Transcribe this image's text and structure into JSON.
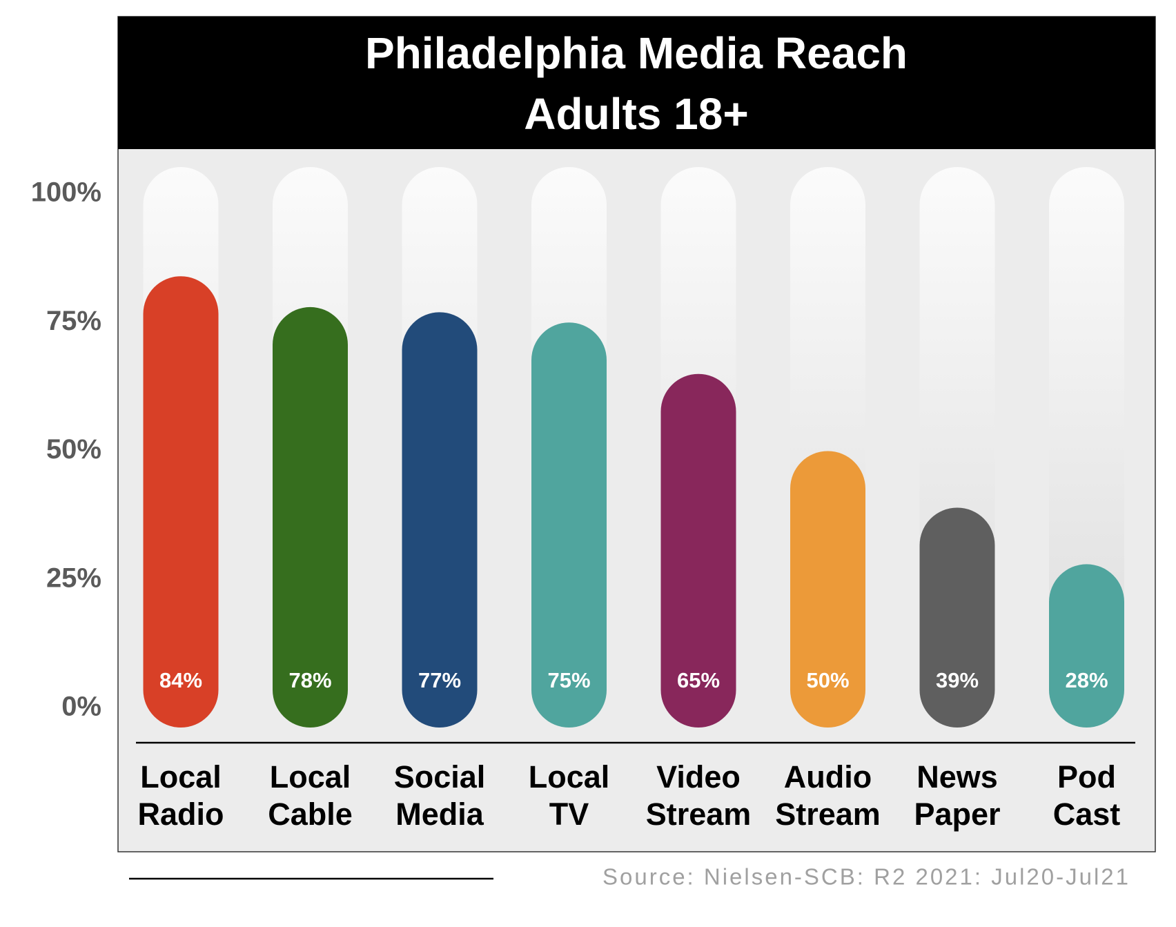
{
  "chart_data": {
    "type": "bar",
    "title": "Philadelphia Media Reach",
    "subtitle": "Adults 18+",
    "categories": [
      [
        "Local",
        "Radio"
      ],
      [
        "Local",
        "Cable"
      ],
      [
        "Social",
        "Media"
      ],
      [
        "Local",
        "TV"
      ],
      [
        "Video",
        "Stream"
      ],
      [
        "Audio",
        "Stream"
      ],
      [
        "News",
        "Paper"
      ],
      [
        "Pod",
        "Cast"
      ]
    ],
    "values": [
      84,
      78,
      77,
      75,
      65,
      50,
      39,
      28
    ],
    "value_labels": [
      "84%",
      "78%",
      "77%",
      "75%",
      "65%",
      "50%",
      "39%",
      "28%"
    ],
    "colors": [
      "#d84027",
      "#366e1e",
      "#224b7a",
      "#50a59e",
      "#88275b",
      "#ec9a39",
      "#5f5f5f",
      "#50a59e"
    ],
    "ylim": [
      0,
      100
    ],
    "yticks": [
      {
        "value": 0,
        "label": "0%"
      },
      {
        "value": 25,
        "label": "25%"
      },
      {
        "value": 50,
        "label": "50%"
      },
      {
        "value": 75,
        "label": "75%"
      },
      {
        "value": 100,
        "label": "100%"
      }
    ],
    "source": "Source: Nielsen-SCB: R2 2021: Jul20-Jul21"
  }
}
